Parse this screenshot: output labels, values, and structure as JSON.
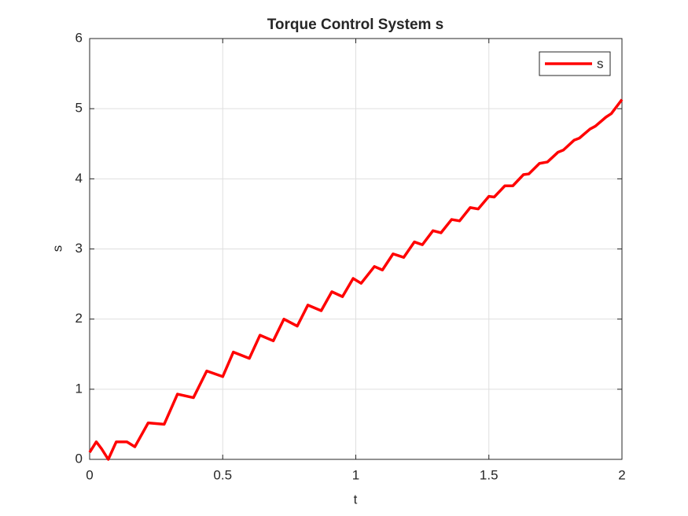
{
  "chart_data": {
    "type": "line",
    "title": "Torque Control System s",
    "xlabel": "t",
    "ylabel": "s",
    "x": [
      0,
      0.025,
      0.045,
      0.07,
      0.1,
      0.14,
      0.17,
      0.22,
      0.28,
      0.33,
      0.39,
      0.44,
      0.5,
      0.54,
      0.6,
      0.64,
      0.69,
      0.73,
      0.78,
      0.82,
      0.87,
      0.91,
      0.95,
      0.99,
      1.02,
      1.07,
      1.1,
      1.14,
      1.18,
      1.22,
      1.25,
      1.29,
      1.32,
      1.36,
      1.39,
      1.43,
      1.46,
      1.5,
      1.52,
      1.56,
      1.59,
      1.63,
      1.65,
      1.69,
      1.72,
      1.76,
      1.78,
      1.82,
      1.84,
      1.88,
      1.9,
      1.94,
      1.96,
      2.0
    ],
    "series": [
      {
        "name": "s",
        "color": "#ff0000",
        "values": [
          0.1,
          0.25,
          0.15,
          0.0,
          0.25,
          0.25,
          0.18,
          0.52,
          0.5,
          0.93,
          0.88,
          1.26,
          1.18,
          1.53,
          1.44,
          1.77,
          1.69,
          2.0,
          1.9,
          2.2,
          2.12,
          2.39,
          2.32,
          2.58,
          2.51,
          2.75,
          2.7,
          2.93,
          2.88,
          3.1,
          3.06,
          3.26,
          3.23,
          3.42,
          3.4,
          3.59,
          3.57,
          3.75,
          3.74,
          3.9,
          3.9,
          4.06,
          4.07,
          4.22,
          4.24,
          4.38,
          4.41,
          4.55,
          4.58,
          4.71,
          4.75,
          4.88,
          4.93,
          5.13
        ]
      }
    ],
    "xlim": [
      0,
      2
    ],
    "xticks": [
      0,
      0.5,
      1,
      1.5,
      2
    ],
    "ylim": [
      0,
      6
    ],
    "yticks": [
      0,
      1,
      2,
      3,
      4,
      5,
      6
    ],
    "grid": true,
    "legend": "upper-right"
  }
}
